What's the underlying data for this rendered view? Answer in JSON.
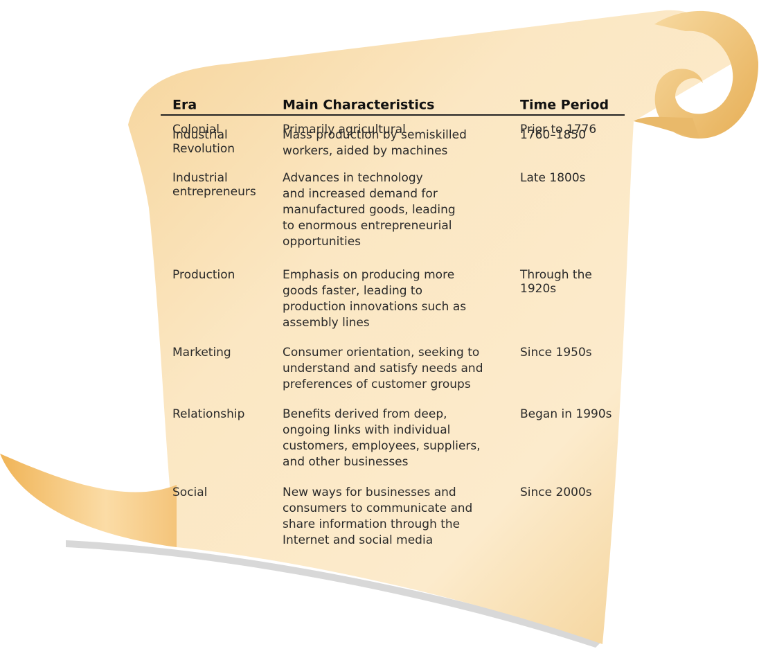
{
  "table": {
    "header": [
      "Era",
      "Main Characteristics",
      "Time Period"
    ],
    "rows": [
      [
        [
          "Colonial"
        ],
        [
          "Primarily agricultural"
        ],
        [
          "Prior to 1776"
        ]
      ],
      [
        [
          "Industrial",
          "Revolution"
        ],
        [
          "Mass production by semiskilled",
          "workers, aided by machines"
        ],
        [
          "1760–1850"
        ]
      ],
      [
        [
          "Industrial",
          "entrepreneurs"
        ],
        [
          "Advances in technology",
          "and increased demand for",
          "manufactured goods, leading",
          "to enormous entrepreneurial",
          "opportunities"
        ],
        [
          "Late 1800s"
        ]
      ],
      [
        [
          "Production"
        ],
        [
          "Emphasis on producing more",
          "goods faster, leading to",
          "production innovations such as",
          "assembly lines"
        ],
        [
          "Through the",
          "1920s"
        ]
      ],
      [
        [
          "Marketing"
        ],
        [
          "Consumer orientation, seeking to",
          "understand and satisfy needs and",
          "preferences of customer groups"
        ],
        [
          "Since 1950s"
        ]
      ],
      [
        [
          "Relationship"
        ],
        [
          "Benefits derived from deep,",
          "ongoing links with individual",
          "customers, employees, suppliers,",
          "and other businesses"
        ],
        [
          "Began in 1990s"
        ]
      ],
      [
        [
          "Social"
        ],
        [
          "New ways for businesses and",
          "consumers to communicate and",
          "share information through the",
          "Internet and social media"
        ],
        [
          "Since 2000s"
        ]
      ]
    ]
  }
}
